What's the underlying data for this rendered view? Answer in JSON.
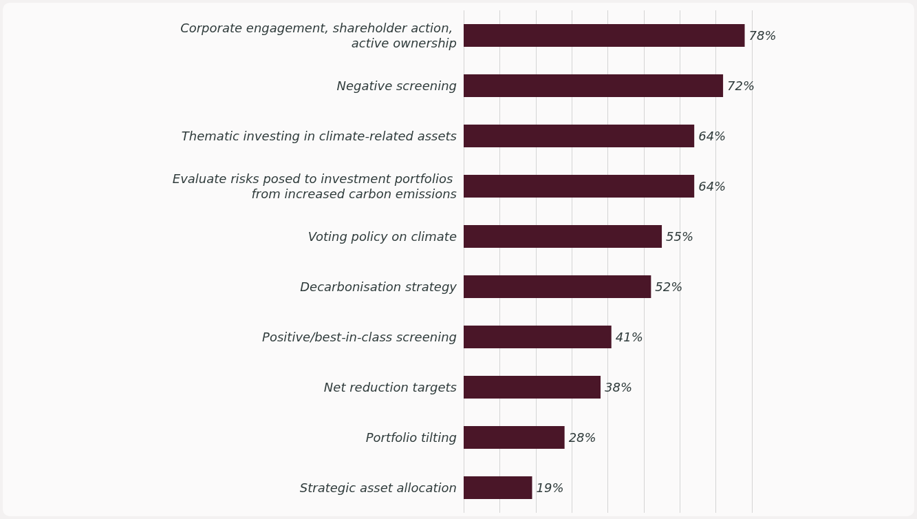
{
  "chart_data": {
    "type": "bar",
    "orientation": "horizontal",
    "categories": [
      "Corporate engagement, shareholder action, active ownership",
      "Negative screening",
      "Thematic investing in climate-related assets",
      "Evaluate risks posed to investment portfolios from increased carbon emissions",
      "Voting policy on climate",
      "Decarbonisation strategy",
      "Positive/best-in-class screening",
      "Net reduction targets",
      "Portfolio tilting",
      "Strategic asset allocation"
    ],
    "values": [
      78,
      72,
      64,
      64,
      55,
      52,
      41,
      38,
      28,
      19
    ],
    "value_labels": [
      "78%",
      "72%",
      "64%",
      "64%",
      "55%",
      "52%",
      "41%",
      "38%",
      "28%",
      "19%"
    ],
    "color": "#4a1628",
    "xlim": [
      0,
      80
    ],
    "xticks": [
      {
        "value": 0,
        "label": null
      },
      {
        "value": 10,
        "label": null
      },
      {
        "value": 20,
        "label": null
      },
      {
        "value": 30,
        "label": null
      },
      {
        "value": 40,
        "label": null
      },
      {
        "value": 50,
        "label": null
      },
      {
        "value": 60,
        "label": null
      },
      {
        "value": 70,
        "label": null
      },
      {
        "value": 80,
        "label": null
      }
    ],
    "grid": "x",
    "tick_labels": "y"
  }
}
